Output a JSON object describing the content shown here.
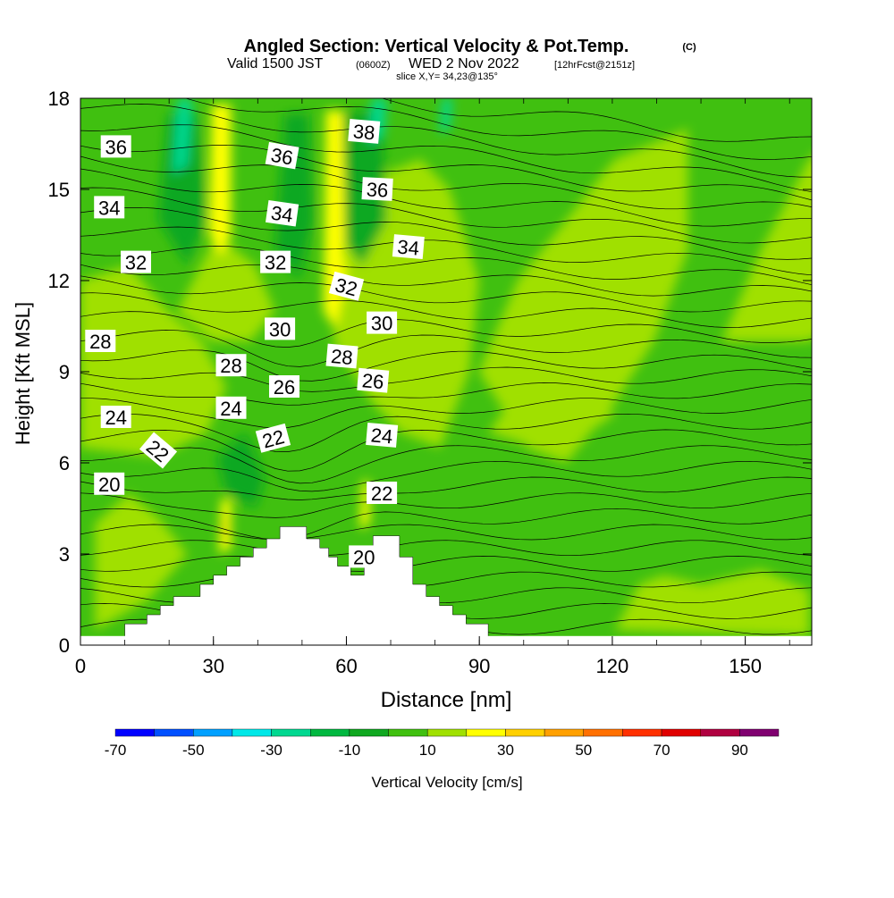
{
  "header": {
    "title": "Angled Section: Vertical Velocity & Pot.Temp.",
    "copyright": "(C)",
    "valid_prefix": "Valid 1500 JST",
    "valid_utc": "(0600Z)",
    "valid_date": "WED 2 Nov 2022",
    "forecast": "[12hrFcst@2151z]",
    "slice": "slice X,Y= 34,23@135°"
  },
  "chart_data": {
    "type": "heatmap",
    "xlabel": "Distance [nm]",
    "ylabel": "Height [Kft MSL]",
    "xlim": [
      0,
      165
    ],
    "ylim": [
      0,
      18
    ],
    "x_ticks": [
      "0",
      "30",
      "60",
      "90",
      "120",
      "150"
    ],
    "y_ticks": [
      "0",
      "3",
      "6",
      "9",
      "12",
      "15",
      "18"
    ],
    "x_tick_values": [
      0,
      30,
      60,
      90,
      120,
      150
    ],
    "y_tick_values": [
      0,
      3,
      6,
      9,
      12,
      15,
      18
    ],
    "colorbar": {
      "label": "Vertical Velocity [cm/s]",
      "tick_labels": [
        "-70",
        "-50",
        "-30",
        "-10",
        "10",
        "30",
        "50",
        "70",
        "90"
      ],
      "tick_values": [
        -70,
        -50,
        -30,
        -10,
        10,
        30,
        50,
        70,
        90
      ],
      "bins": [
        {
          "from": -70,
          "to": -60,
          "color": "#0000ff"
        },
        {
          "from": -60,
          "to": -50,
          "color": "#0050ff"
        },
        {
          "from": -50,
          "to": -40,
          "color": "#00a0ff"
        },
        {
          "from": -40,
          "to": -30,
          "color": "#00e8e8"
        },
        {
          "from": -30,
          "to": -20,
          "color": "#00d890"
        },
        {
          "from": -20,
          "to": -10,
          "color": "#00b840"
        },
        {
          "from": -10,
          "to": 0,
          "color": "#10a820"
        },
        {
          "from": 0,
          "to": 10,
          "color": "#40c010"
        },
        {
          "from": 10,
          "to": 20,
          "color": "#a0e000"
        },
        {
          "from": 20,
          "to": 30,
          "color": "#ffff00"
        },
        {
          "from": 30,
          "to": 40,
          "color": "#ffd000"
        },
        {
          "from": 40,
          "to": 50,
          "color": "#ffa000"
        },
        {
          "from": 50,
          "to": 60,
          "color": "#ff7000"
        },
        {
          "from": 60,
          "to": 70,
          "color": "#ff3000"
        },
        {
          "from": 70,
          "to": 80,
          "color": "#e00000"
        },
        {
          "from": 80,
          "to": 90,
          "color": "#b00040"
        },
        {
          "from": 90,
          "to": 100,
          "color": "#800070"
        }
      ]
    },
    "terrain": [
      [
        10,
        0.3
      ],
      [
        10,
        0.7
      ],
      [
        15,
        0.7
      ],
      [
        15,
        1
      ],
      [
        18,
        1
      ],
      [
        18,
        1.3
      ],
      [
        21,
        1.3
      ],
      [
        21,
        1.6
      ],
      [
        27,
        1.6
      ],
      [
        27,
        2
      ],
      [
        30,
        2
      ],
      [
        30,
        2.3
      ],
      [
        33,
        2.3
      ],
      [
        33,
        2.6
      ],
      [
        36,
        2.6
      ],
      [
        36,
        2.9
      ],
      [
        39,
        2.9
      ],
      [
        39,
        3.2
      ],
      [
        42,
        3.2
      ],
      [
        42,
        3.5
      ],
      [
        45,
        3.5
      ],
      [
        45,
        3.9
      ],
      [
        51,
        3.9
      ],
      [
        51,
        3.5
      ],
      [
        54,
        3.5
      ],
      [
        54,
        3.2
      ],
      [
        56,
        3.2
      ],
      [
        56,
        2.9
      ],
      [
        58,
        2.9
      ],
      [
        58,
        2.6
      ],
      [
        61,
        2.6
      ],
      [
        61,
        2.3
      ],
      [
        64,
        2.3
      ],
      [
        64,
        2.6
      ],
      [
        66,
        2.6
      ],
      [
        66,
        3.6
      ],
      [
        72,
        3.6
      ],
      [
        72,
        2.9
      ],
      [
        75,
        2.9
      ],
      [
        75,
        2
      ],
      [
        78,
        2
      ],
      [
        78,
        1.6
      ],
      [
        81,
        1.6
      ],
      [
        81,
        1.3
      ],
      [
        84,
        1.3
      ],
      [
        84,
        1
      ],
      [
        87,
        1
      ],
      [
        87,
        0.7
      ],
      [
        92,
        0.7
      ],
      [
        92,
        0.3
      ]
    ],
    "contour_labels": [
      {
        "text": "36",
        "x": 8,
        "y": 16.4,
        "angle": 0
      },
      {
        "text": "34",
        "x": 6.5,
        "y": 14.4,
        "angle": 0
      },
      {
        "text": "32",
        "x": 12.5,
        "y": 12.6,
        "angle": 0
      },
      {
        "text": "28",
        "x": 4.5,
        "y": 10,
        "angle": 0
      },
      {
        "text": "24",
        "x": 8,
        "y": 7.5,
        "angle": 0
      },
      {
        "text": "22",
        "x": 17.5,
        "y": 6.4,
        "angle": 40
      },
      {
        "text": "20",
        "x": 6.5,
        "y": 5.3,
        "angle": 0
      },
      {
        "text": "36",
        "x": 45.5,
        "y": 16.1,
        "angle": 10
      },
      {
        "text": "34",
        "x": 45.5,
        "y": 14.2,
        "angle": 8
      },
      {
        "text": "32",
        "x": 44,
        "y": 12.6,
        "angle": 0
      },
      {
        "text": "30",
        "x": 45,
        "y": 10.4,
        "angle": 0
      },
      {
        "text": "28",
        "x": 34,
        "y": 9.2,
        "angle": 0
      },
      {
        "text": "26",
        "x": 46,
        "y": 8.5,
        "angle": 0
      },
      {
        "text": "24",
        "x": 34,
        "y": 7.8,
        "angle": 0
      },
      {
        "text": "22",
        "x": 43.5,
        "y": 6.8,
        "angle": -15
      },
      {
        "text": "38",
        "x": 64,
        "y": 16.9,
        "angle": 5
      },
      {
        "text": "36",
        "x": 67,
        "y": 15.0,
        "angle": 3
      },
      {
        "text": "32",
        "x": 60,
        "y": 11.8,
        "angle": 15
      },
      {
        "text": "28",
        "x": 59,
        "y": 9.5,
        "angle": 5
      },
      {
        "text": "30",
        "x": 68,
        "y": 10.6,
        "angle": 0
      },
      {
        "text": "26",
        "x": 66,
        "y": 8.7,
        "angle": 5
      },
      {
        "text": "34",
        "x": 74,
        "y": 13.1,
        "angle": 5
      },
      {
        "text": "24",
        "x": 68,
        "y": 6.9,
        "angle": 5
      },
      {
        "text": "22",
        "x": 68,
        "y": 5.0,
        "angle": 0
      },
      {
        "text": "20",
        "x": 64,
        "y": 2.9,
        "angle": 0
      }
    ]
  }
}
